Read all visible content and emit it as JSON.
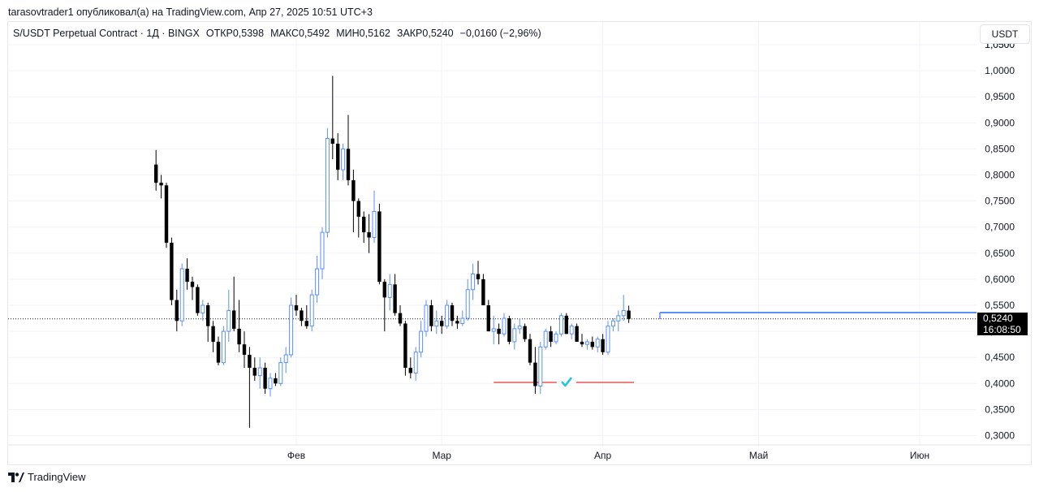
{
  "header": {
    "published_line": "tarasovtrader1 опубликовал(а) на TradingView.com, Апр 27, 2025 10:51 UTC+3"
  },
  "legend": {
    "symbol": "S/USDT Perpetual Contract · 1Д · BINGX",
    "open_label": "ОТКР",
    "open_value": "0,5398",
    "high_label": "МАКС",
    "high_value": "0,5492",
    "low_label": "МИН",
    "low_value": "0,5162",
    "close_label": "ЗАКР",
    "close_value": "0,5240",
    "change": "−0,0160 (−2,96%)"
  },
  "currency_button": "USDT",
  "last_price": {
    "value": "0,5240",
    "countdown": "16:08:50"
  },
  "footer": {
    "brand": "TradingView"
  },
  "colors": {
    "up": "#5b8ff9",
    "down": "#000000",
    "level_line": "#5b8ff9",
    "support_line": "#e53935",
    "check": "#26c6da",
    "grid": "#f0f3fa"
  },
  "chart_data": {
    "type": "candlestick",
    "ylim": [
      0.28,
      1.05
    ],
    "y_ticks": [
      "0,3000",
      "0,3500",
      "0,4000",
      "0,4500",
      "0,5000",
      "0,5500",
      "0,6000",
      "0,6500",
      "0,7000",
      "0,7500",
      "0,8000",
      "0,8500",
      "0,9000",
      "0,9500",
      "1,0000",
      "1,0500"
    ],
    "y_tick_values": [
      0.3,
      0.35,
      0.4,
      0.45,
      0.5,
      0.55,
      0.6,
      0.65,
      0.7,
      0.75,
      0.8,
      0.85,
      0.9,
      0.95,
      1.0,
      1.05
    ],
    "x_labels": [
      "Фев",
      "Мар",
      "Апр",
      "Май",
      "Июн"
    ],
    "x_label_dates": [
      "2025-02-01",
      "2025-03-01",
      "2025-04-01",
      "2025-05-01",
      "2025-06-01"
    ],
    "first_candle_date": "2025-01-05",
    "candles_ohlc": [
      [
        0.82,
        0.848,
        0.77,
        0.785
      ],
      [
        0.785,
        0.8,
        0.755,
        0.78
      ],
      [
        0.78,
        0.785,
        0.66,
        0.67
      ],
      [
        0.67,
        0.68,
        0.55,
        0.56
      ],
      [
        0.56,
        0.58,
        0.5,
        0.52
      ],
      [
        0.52,
        0.63,
        0.51,
        0.62
      ],
      [
        0.62,
        0.64,
        0.58,
        0.595
      ],
      [
        0.595,
        0.605,
        0.56,
        0.585
      ],
      [
        0.585,
        0.59,
        0.53,
        0.535
      ],
      [
        0.535,
        0.56,
        0.52,
        0.55
      ],
      [
        0.55,
        0.555,
        0.48,
        0.51
      ],
      [
        0.51,
        0.52,
        0.46,
        0.48
      ],
      [
        0.48,
        0.49,
        0.435,
        0.44
      ],
      [
        0.44,
        0.51,
        0.435,
        0.5
      ],
      [
        0.5,
        0.58,
        0.48,
        0.54
      ],
      [
        0.54,
        0.605,
        0.5,
        0.505
      ],
      [
        0.505,
        0.56,
        0.46,
        0.475
      ],
      [
        0.475,
        0.5,
        0.43,
        0.455
      ],
      [
        0.455,
        0.47,
        0.315,
        0.43
      ],
      [
        0.43,
        0.45,
        0.405,
        0.415
      ],
      [
        0.415,
        0.45,
        0.39,
        0.43
      ],
      [
        0.43,
        0.44,
        0.38,
        0.39
      ],
      [
        0.39,
        0.42,
        0.375,
        0.41
      ],
      [
        0.41,
        0.42,
        0.395,
        0.4
      ],
      [
        0.4,
        0.45,
        0.395,
        0.44
      ],
      [
        0.44,
        0.47,
        0.42,
        0.455
      ],
      [
        0.455,
        0.565,
        0.45,
        0.55
      ],
      [
        0.55,
        0.57,
        0.53,
        0.54
      ],
      [
        0.54,
        0.545,
        0.51,
        0.52
      ],
      [
        0.52,
        0.55,
        0.505,
        0.51
      ],
      [
        0.51,
        0.58,
        0.5,
        0.57
      ],
      [
        0.57,
        0.645,
        0.555,
        0.62
      ],
      [
        0.62,
        0.7,
        0.6,
        0.69
      ],
      [
        0.69,
        0.89,
        0.68,
        0.87
      ],
      [
        0.87,
        0.99,
        0.83,
        0.86
      ],
      [
        0.86,
        0.88,
        0.79,
        0.81
      ],
      [
        0.81,
        0.86,
        0.79,
        0.85
      ],
      [
        0.85,
        0.915,
        0.78,
        0.79
      ],
      [
        0.79,
        0.81,
        0.69,
        0.75
      ],
      [
        0.75,
        0.755,
        0.68,
        0.72
      ],
      [
        0.72,
        0.73,
        0.67,
        0.69
      ],
      [
        0.69,
        0.725,
        0.65,
        0.68
      ],
      [
        0.68,
        0.77,
        0.67,
        0.73
      ],
      [
        0.73,
        0.745,
        0.59,
        0.595
      ],
      [
        0.595,
        0.6,
        0.5,
        0.565
      ],
      [
        0.565,
        0.61,
        0.54,
        0.59
      ],
      [
        0.59,
        0.61,
        0.53,
        0.535
      ],
      [
        0.535,
        0.55,
        0.51,
        0.515
      ],
      [
        0.515,
        0.52,
        0.415,
        0.43
      ],
      [
        0.43,
        0.45,
        0.41,
        0.42
      ],
      [
        0.42,
        0.47,
        0.405,
        0.46
      ],
      [
        0.46,
        0.52,
        0.45,
        0.5
      ],
      [
        0.5,
        0.56,
        0.49,
        0.55
      ],
      [
        0.55,
        0.56,
        0.5,
        0.51
      ],
      [
        0.51,
        0.54,
        0.495,
        0.52
      ],
      [
        0.52,
        0.53,
        0.495,
        0.51
      ],
      [
        0.51,
        0.56,
        0.505,
        0.55
      ],
      [
        0.55,
        0.555,
        0.51,
        0.52
      ],
      [
        0.52,
        0.53,
        0.505,
        0.515
      ],
      [
        0.515,
        0.54,
        0.51,
        0.525
      ],
      [
        0.525,
        0.6,
        0.52,
        0.58
      ],
      [
        0.58,
        0.63,
        0.56,
        0.61
      ],
      [
        0.61,
        0.635,
        0.59,
        0.6
      ],
      [
        0.6,
        0.61,
        0.555,
        0.55
      ],
      [
        0.55,
        0.56,
        0.5,
        0.5
      ],
      [
        0.5,
        0.53,
        0.475,
        0.505
      ],
      [
        0.505,
        0.515,
        0.475,
        0.495
      ],
      [
        0.495,
        0.535,
        0.49,
        0.525
      ],
      [
        0.525,
        0.53,
        0.475,
        0.48
      ],
      [
        0.48,
        0.515,
        0.465,
        0.505
      ],
      [
        0.505,
        0.525,
        0.495,
        0.51
      ],
      [
        0.51,
        0.515,
        0.48,
        0.485
      ],
      [
        0.485,
        0.495,
        0.435,
        0.44
      ],
      [
        0.44,
        0.47,
        0.38,
        0.395
      ],
      [
        0.395,
        0.48,
        0.38,
        0.47
      ],
      [
        0.47,
        0.505,
        0.465,
        0.5
      ],
      [
        0.5,
        0.51,
        0.47,
        0.48
      ],
      [
        0.48,
        0.5,
        0.475,
        0.495
      ],
      [
        0.495,
        0.535,
        0.49,
        0.53
      ],
      [
        0.53,
        0.535,
        0.495,
        0.495
      ],
      [
        0.495,
        0.515,
        0.485,
        0.51
      ],
      [
        0.51,
        0.515,
        0.48,
        0.48
      ],
      [
        0.48,
        0.495,
        0.47,
        0.475
      ],
      [
        0.475,
        0.485,
        0.465,
        0.48
      ],
      [
        0.48,
        0.49,
        0.465,
        0.47
      ],
      [
        0.47,
        0.49,
        0.46,
        0.485
      ],
      [
        0.485,
        0.495,
        0.455,
        0.46
      ],
      [
        0.46,
        0.52,
        0.455,
        0.51
      ],
      [
        0.51,
        0.525,
        0.5,
        0.52
      ],
      [
        0.52,
        0.54,
        0.5,
        0.53
      ],
      [
        0.53,
        0.57,
        0.52,
        0.54
      ],
      [
        0.5398,
        0.5492,
        0.5162,
        0.524
      ]
    ],
    "level_line": {
      "value": 0.536,
      "start_date": "2025-04-12"
    },
    "support_line": {
      "value": 0.402,
      "start_date": "2025-03-11",
      "end_date": "2025-04-07"
    },
    "check_mark_date": "2025-03-25",
    "last_price_value": 0.524
  }
}
